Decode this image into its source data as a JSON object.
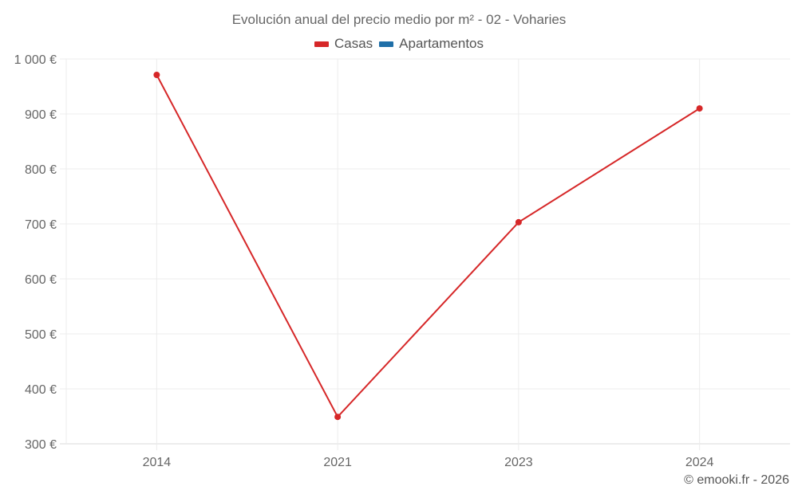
{
  "chart_data": {
    "type": "line",
    "title": "Evolución anual del precio medio por m² - 02 - Voharies",
    "xlabel": "",
    "ylabel": "",
    "categories": [
      "2014",
      "2021",
      "2023",
      "2024"
    ],
    "series": [
      {
        "name": "Casas",
        "color": "#d62728",
        "values": [
          971,
          349,
          703,
          910
        ]
      },
      {
        "name": "Apartamentos",
        "color": "#1f6fa8",
        "values": [
          null,
          null,
          null,
          null
        ]
      }
    ],
    "ylim": [
      300,
      1000
    ],
    "yticks": [
      300,
      400,
      500,
      600,
      700,
      800,
      900,
      1000
    ],
    "ytick_labels": [
      "300 €",
      "400 €",
      "500 €",
      "600 €",
      "700 €",
      "800 €",
      "900 €",
      "1 000 €"
    ],
    "grid": true,
    "legend_position": "top"
  },
  "legend": [
    {
      "label": "Casas",
      "color": "#d62728"
    },
    {
      "label": "Apartamentos",
      "color": "#1f6fa8"
    }
  ],
  "credit": "© emooki.fr - 2026"
}
